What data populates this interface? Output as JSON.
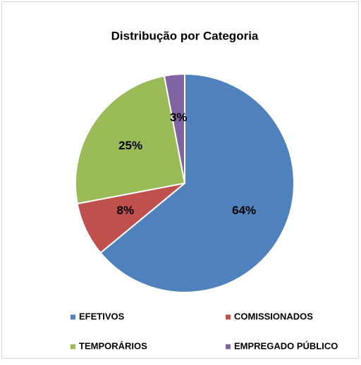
{
  "chart_data": {
    "type": "pie",
    "title": "Distribução por Categoria",
    "categories": [
      "EFETIVOS",
      "COMISSIONADOS",
      "TEMPORÁRIOS",
      "EMPREGADO PÚBLICO"
    ],
    "values": [
      64,
      8,
      25,
      3
    ],
    "value_labels": [
      "64%",
      "8%",
      "25%",
      "3%"
    ],
    "colors": [
      "#4f81bd",
      "#c0504d",
      "#9bbb59",
      "#8064a2"
    ],
    "legend": "bottom"
  }
}
